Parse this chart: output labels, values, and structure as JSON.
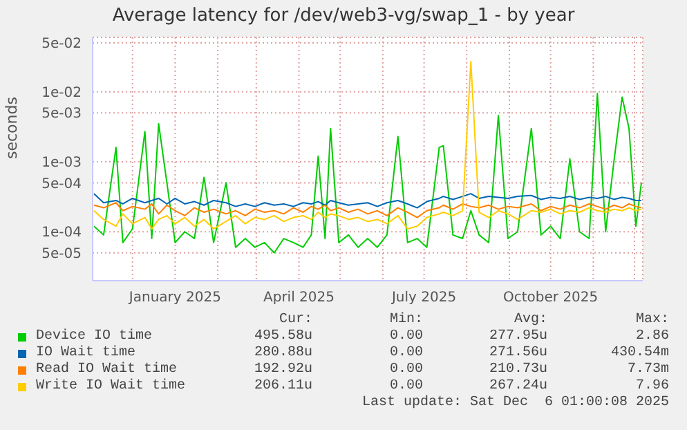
{
  "chart_data": {
    "type": "line",
    "title": "Average latency for /dev/web3-vg/swap_1 - by year",
    "ylabel": "seconds",
    "log": "y",
    "grid": true,
    "legend": "bottom",
    "xlim": [
      "2024-11-02",
      "2025-12-07"
    ],
    "xticks": [
      {
        "value": "2024-12-01",
        "label": null
      },
      {
        "value": "2025-01-01",
        "label": "January 2025"
      },
      {
        "value": "2025-02-01",
        "label": null
      },
      {
        "value": "2025-03-01",
        "label": null
      },
      {
        "value": "2025-04-01",
        "label": "April 2025"
      },
      {
        "value": "2025-05-01",
        "label": null
      },
      {
        "value": "2025-06-01",
        "label": null
      },
      {
        "value": "2025-07-01",
        "label": "July 2025"
      },
      {
        "value": "2025-08-01",
        "label": null
      },
      {
        "value": "2025-09-01",
        "label": null
      },
      {
        "value": "2025-10-01",
        "label": "October 2025"
      },
      {
        "value": "2025-11-01",
        "label": null
      },
      {
        "value": "2025-12-01",
        "label": null
      }
    ],
    "ylim": [
      2e-05,
      0.06
    ],
    "yticks": [
      {
        "value": 5e-05,
        "label": "5e-05"
      },
      {
        "value": 0.0001,
        "label": "1e-04"
      },
      {
        "value": 0.0005,
        "label": "5e-04"
      },
      {
        "value": 0.001,
        "label": "1e-03"
      },
      {
        "value": 0.005,
        "label": "5e-03"
      },
      {
        "value": 0.01,
        "label": "1e-02"
      },
      {
        "value": 0.05,
        "label": "5e-02"
      }
    ],
    "x": [
      "2024-11-03",
      "2024-11-10",
      "2024-11-19",
      "2024-11-24",
      "2024-12-01",
      "2024-12-10",
      "2024-12-15",
      "2024-12-20",
      "2024-12-26",
      "2025-01-01",
      "2025-01-08",
      "2025-01-15",
      "2025-01-22",
      "2025-01-29",
      "2025-02-07",
      "2025-02-14",
      "2025-02-21",
      "2025-02-28",
      "2025-03-07",
      "2025-03-14",
      "2025-03-21",
      "2025-03-28",
      "2025-04-04",
      "2025-04-10",
      "2025-04-15",
      "2025-04-20",
      "2025-04-24",
      "2025-04-30",
      "2025-05-07",
      "2025-05-14",
      "2025-05-21",
      "2025-05-28",
      "2025-06-04",
      "2025-06-12",
      "2025-06-19",
      "2025-06-26",
      "2025-07-03",
      "2025-07-12",
      "2025-07-15",
      "2025-07-22",
      "2025-07-29",
      "2025-08-04",
      "2025-08-10",
      "2025-08-17",
      "2025-08-24",
      "2025-08-31",
      "2025-09-07",
      "2025-09-17",
      "2025-09-24",
      "2025-10-01",
      "2025-10-08",
      "2025-10-15",
      "2025-10-22",
      "2025-10-29",
      "2025-11-04",
      "2025-11-10",
      "2025-11-16",
      "2025-11-22",
      "2025-11-27",
      "2025-12-02",
      "2025-12-06"
    ],
    "series": [
      {
        "name": "Device IO time",
        "color": "#00cc00",
        "values": [
          0.00012,
          9e-05,
          0.0016,
          7e-05,
          0.00011,
          0.0027,
          8e-05,
          0.0035,
          0.0005,
          7e-05,
          0.0001,
          8e-05,
          0.0006,
          7e-05,
          0.0005,
          6e-05,
          8e-05,
          6e-05,
          7e-05,
          5e-05,
          8e-05,
          7e-05,
          6e-05,
          9e-05,
          0.0012,
          8e-05,
          0.003,
          7e-05,
          9e-05,
          6e-05,
          8e-05,
          6e-05,
          9e-05,
          0.0023,
          7e-05,
          8e-05,
          6e-05,
          0.0016,
          0.0017,
          9e-05,
          8e-05,
          0.0002,
          9e-05,
          7e-05,
          0.0046,
          8e-05,
          0.0001,
          0.003,
          9e-05,
          0.00012,
          8e-05,
          0.0011,
          0.0001,
          8e-05,
          0.0095,
          0.0001,
          0.001,
          0.0084,
          0.003,
          0.00012,
          0.0005
        ]
      },
      {
        "name": "IO Wait time",
        "color": "#0066b3",
        "values": [
          0.00035,
          0.00026,
          0.00028,
          0.00025,
          0.0003,
          0.00026,
          0.00028,
          0.0003,
          0.00025,
          0.0003,
          0.00025,
          0.00027,
          0.00024,
          0.00028,
          0.00026,
          0.00023,
          0.00025,
          0.00023,
          0.00026,
          0.00024,
          0.00025,
          0.00023,
          0.00026,
          0.00025,
          0.00027,
          0.00024,
          0.00028,
          0.00026,
          0.00024,
          0.00025,
          0.00026,
          0.00023,
          0.00026,
          0.00028,
          0.00025,
          0.00022,
          0.00027,
          0.0003,
          0.00032,
          0.00029,
          0.00032,
          0.00035,
          0.0003,
          0.00032,
          0.00031,
          0.0003,
          0.00032,
          0.00033,
          0.00029,
          0.00031,
          0.0003,
          0.00032,
          0.00029,
          0.00031,
          0.0003,
          0.00032,
          0.00029,
          0.00031,
          0.0003,
          0.00028,
          0.00028
        ]
      },
      {
        "name": "Read IO Wait time",
        "color": "#ff8000",
        "values": [
          0.00024,
          0.00022,
          0.00026,
          0.0002,
          0.00023,
          0.00021,
          0.00025,
          0.00018,
          0.00024,
          0.0002,
          0.00017,
          0.00022,
          0.00019,
          0.00021,
          0.00018,
          0.0002,
          0.00017,
          0.00021,
          0.00019,
          0.0002,
          0.00018,
          0.00022,
          0.00019,
          0.00023,
          0.00021,
          0.00024,
          0.0002,
          0.00022,
          0.00019,
          0.00021,
          0.00018,
          0.0002,
          0.00017,
          0.00022,
          0.00019,
          0.00016,
          0.0002,
          0.00022,
          0.00024,
          0.00021,
          0.00025,
          0.00023,
          0.00022,
          0.00024,
          0.00021,
          0.00023,
          0.00022,
          0.00025,
          0.0002,
          0.00023,
          0.00021,
          0.00024,
          0.00022,
          0.00025,
          0.00023,
          0.00021,
          0.00024,
          0.00022,
          0.00025,
          0.00023,
          0.00022
        ]
      },
      {
        "name": "Write IO Wait time",
        "color": "#ffcc00",
        "values": [
          0.0002,
          0.00015,
          0.00012,
          0.00018,
          0.00013,
          0.00016,
          0.00011,
          0.00015,
          0.00017,
          0.00013,
          0.00016,
          0.00012,
          0.00015,
          0.00011,
          0.00014,
          0.00017,
          0.00013,
          0.00016,
          0.00015,
          0.00017,
          0.00014,
          0.00016,
          0.00017,
          0.00015,
          0.00019,
          0.00016,
          0.00018,
          0.00017,
          0.00015,
          0.00016,
          0.00014,
          0.00015,
          0.00013,
          0.00017,
          0.00011,
          0.00012,
          0.00016,
          0.00018,
          0.00019,
          0.00017,
          0.0002,
          0.027,
          0.00019,
          0.00016,
          0.0002,
          0.00018,
          0.00015,
          0.0002,
          0.00019,
          0.00021,
          0.00018,
          0.0002,
          0.00019,
          0.00022,
          0.0002,
          0.00019,
          0.00021,
          0.0002,
          0.00022,
          0.0002,
          0.00021
        ]
      }
    ],
    "annotations": [
      "Cur:",
      "Min:",
      "Avg:",
      "Max:",
      "495.58u",
      "0.00",
      "277.95u",
      "2.86",
      "280.88u",
      "0.00",
      "271.56u",
      "430.54m",
      "192.92u",
      "0.00",
      "210.73u",
      "7.73m",
      "206.11u",
      "0.00",
      "267.24u",
      "7.96",
      "Last update: Sat Dec  6 01:00:08 2025"
    ]
  }
}
